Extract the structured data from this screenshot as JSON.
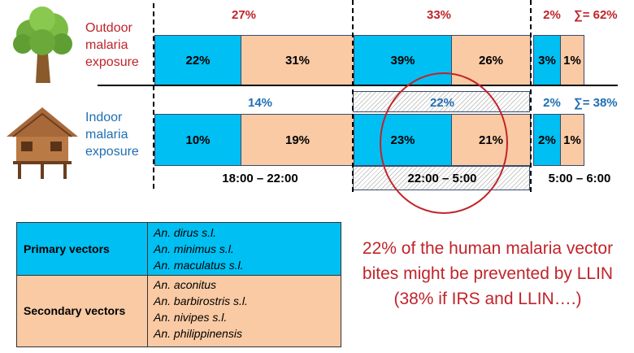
{
  "rows": {
    "outdoor": {
      "label_lines": [
        "Outdoor",
        "malaria",
        "exposure"
      ],
      "totals": {
        "evening": "27%",
        "night": "33%",
        "morning": "2%",
        "sum": "∑= 62%"
      },
      "segments": [
        "22%",
        "31%",
        "39%",
        "26%",
        "3%",
        "1%"
      ]
    },
    "indoor": {
      "label_lines": [
        "Indoor",
        "malaria",
        "exposure"
      ],
      "totals": {
        "evening": "14%",
        "night": "22%",
        "morning": "2%",
        "sum": "∑= 38%"
      },
      "segments": [
        "10%",
        "19%",
        "23%",
        "21%",
        "2%",
        "1%"
      ]
    }
  },
  "time_labels": [
    "18:00 – 22:00",
    "22:00 – 5:00",
    "5:00 – 6:00"
  ],
  "vectors": {
    "primary": {
      "label": "Primary vectors",
      "species": [
        "An. dirus s.l.",
        "An. minimus s.l.",
        "An. maculatus s.l."
      ]
    },
    "secondary": {
      "label": "Secondary vectors",
      "species": [
        "An. aconitus",
        "An. barbirostris s.l.",
        "An. nivipes s.l.",
        "An. philippinensis"
      ]
    }
  },
  "note": "22% of the human malaria vector bites might be prevented by LLIN (38% if IRS and LLIN….)",
  "colors": {
    "primary": "#00bff2",
    "secondary": "#f9caa4",
    "red": "#c0242a",
    "blue": "#1f6fb3"
  }
}
